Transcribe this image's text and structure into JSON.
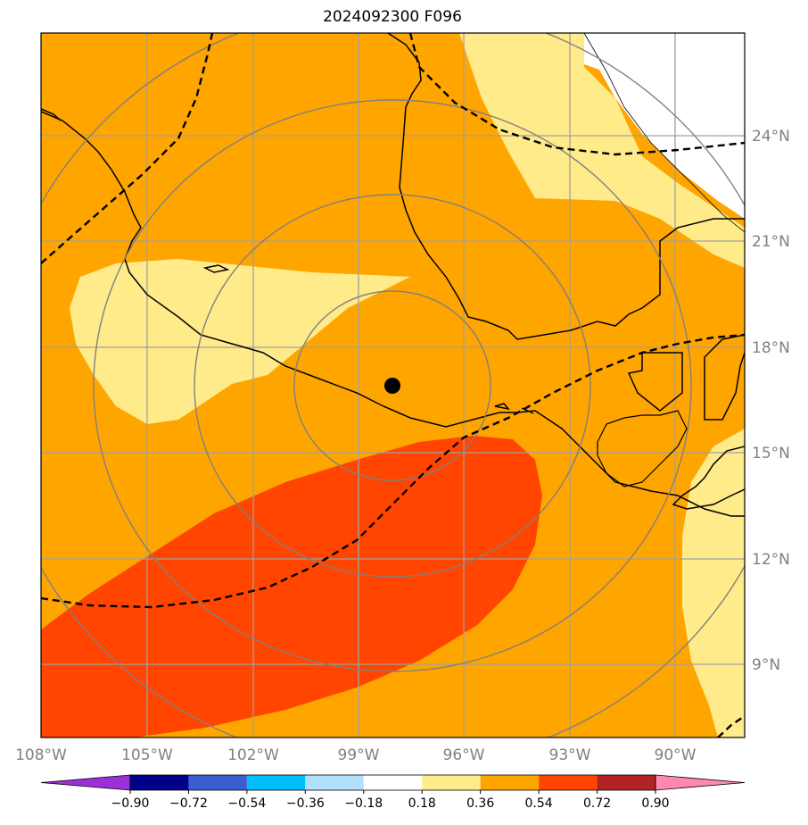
{
  "title": "2024092300 F096",
  "map": {
    "center_marker": {
      "lon": -98.0,
      "lat": 16.9
    },
    "lon_ticks": [
      "108°W",
      "105°W",
      "102°W",
      "99°W",
      "96°W",
      "93°W",
      "90°W"
    ],
    "lat_ticks": [
      "24°N",
      "21°N",
      "18°N",
      "15°N",
      "12°N",
      "9°N"
    ],
    "range_rings": [
      "ring-1",
      "ring-2",
      "ring-3",
      "ring-4"
    ]
  },
  "colorbar": {
    "ticks": [
      "−0.90",
      "−0.72",
      "−0.54",
      "−0.36",
      "−0.18",
      "0.18",
      "0.36",
      "0.54",
      "0.72",
      "0.90"
    ],
    "colors": [
      "#9b30d9",
      "#00008b",
      "#3b5fcf",
      "#00bfff",
      "#b0e0fa",
      "#ffffff",
      "#ffeb8a",
      "#ffa500",
      "#ff4500",
      "#b22222",
      "#ff88b0"
    ]
  }
}
